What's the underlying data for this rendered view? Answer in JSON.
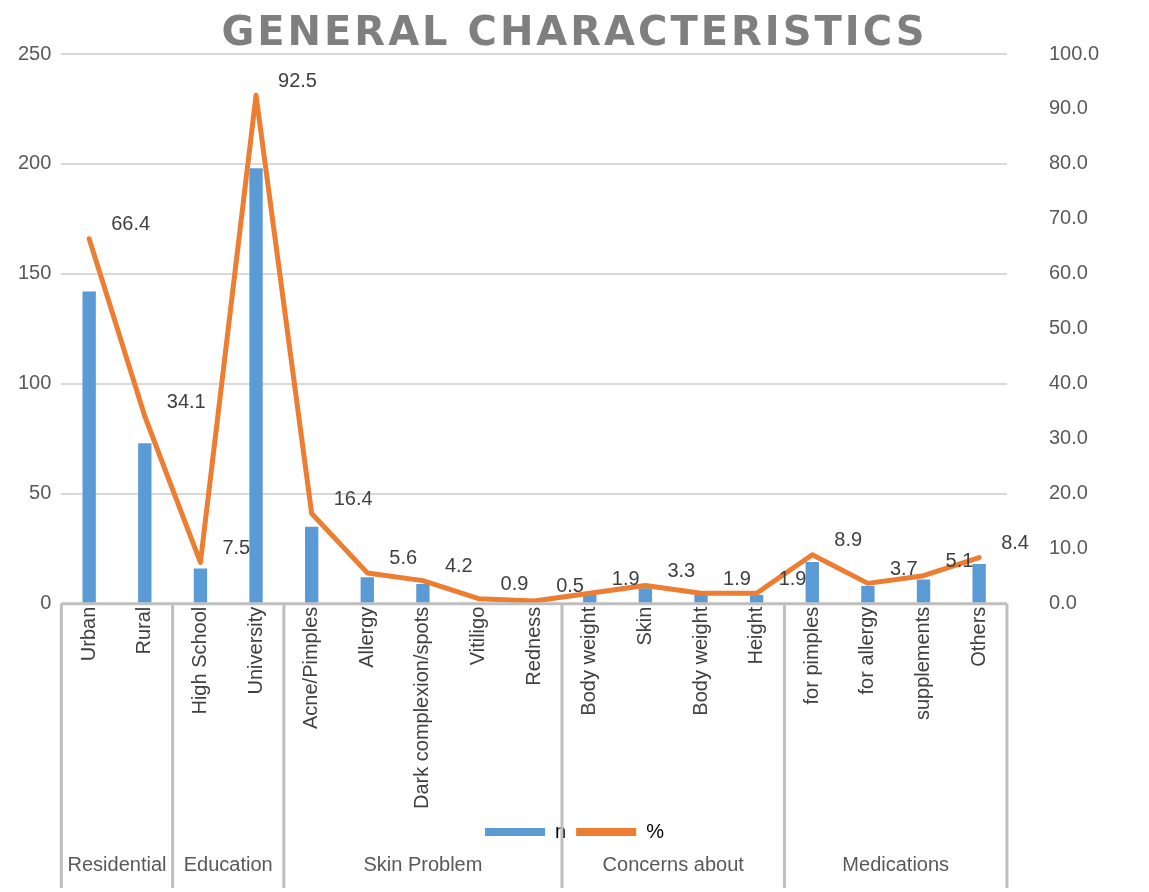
{
  "chart_data": {
    "type": "bar",
    "title": "GENERAL CHARACTERISTICS",
    "categories": [
      "Urban",
      "Rural",
      "High School",
      "University",
      "Acne/Pimples",
      "Allergy",
      "Dark complexion/spots",
      "Vitiligo",
      "Redness",
      "Body weight",
      "Skin",
      "Body weight",
      "Height",
      "for pimples",
      "for allergy",
      "supplements",
      "Others"
    ],
    "series": [
      {
        "name": "n",
        "color": "#5b9bd5",
        "values": [
          142,
          73,
          16,
          198,
          35,
          12,
          9,
          null,
          null,
          4,
          7,
          4,
          4,
          19,
          8,
          11,
          18
        ]
      },
      {
        "name": "%",
        "type": "line",
        "axis": "y2",
        "color": "#ed7d31",
        "values": [
          66.4,
          34.1,
          7.5,
          92.5,
          16.4,
          5.6,
          4.2,
          0.9,
          0.5,
          1.9,
          3.3,
          1.9,
          1.9,
          8.9,
          3.7,
          5.1,
          8.4
        ],
        "value_labels": [
          "66.4",
          "34.1",
          "7.5",
          "92.5",
          "16.4",
          "5.6",
          "4.2",
          "0.9",
          "0.5",
          "1.9",
          "3.3",
          "1.9",
          "1.9",
          "8.9",
          "3.7",
          "5.1",
          "8.4"
        ]
      }
    ],
    "ylim": [
      0,
      250
    ],
    "yticks": [
      0,
      50,
      100,
      150,
      200,
      250
    ],
    "y2lim": [
      0,
      100
    ],
    "y2ticks": [
      {
        "value": 0,
        "label": "0.0"
      },
      {
        "value": 10,
        "label": "10.0"
      },
      {
        "value": 20,
        "label": "20.0"
      },
      {
        "value": 30,
        "label": "30.0"
      },
      {
        "value": 40,
        "label": "40.0"
      },
      {
        "value": 50,
        "label": "50.0"
      },
      {
        "value": 60,
        "label": "60.0"
      },
      {
        "value": 70,
        "label": "70.0"
      },
      {
        "value": 80,
        "label": "80.0"
      },
      {
        "value": 90,
        "label": "90.0"
      },
      {
        "value": 100,
        "label": "100.0"
      }
    ],
    "annotations": [
      "Residential",
      "Education",
      "Skin Problem",
      "Concerns about",
      "Medications"
    ],
    "grid": "y",
    "legend": "bottom",
    "marker": "none",
    "line_style": "solid"
  }
}
